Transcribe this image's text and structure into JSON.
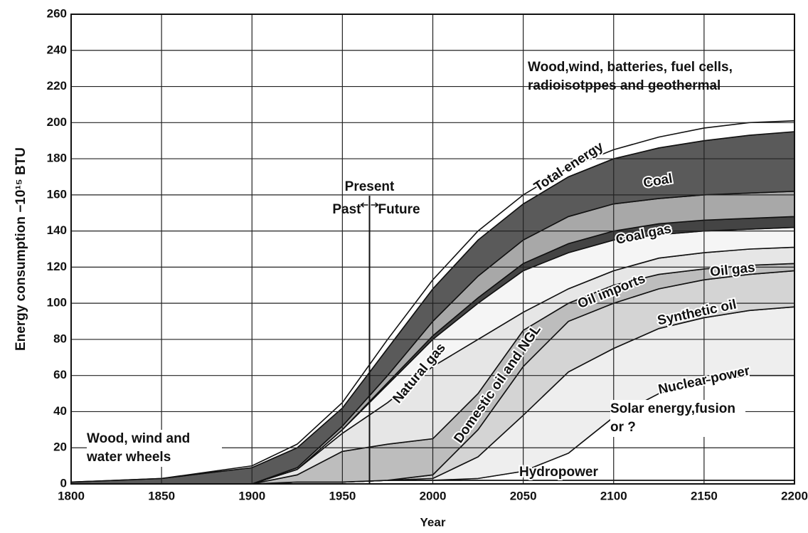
{
  "chart_data": {
    "type": "stacked_area",
    "x_label": "Year",
    "y_label": "Energy consumption −10¹⁵ BTU",
    "x": [
      1800,
      1850,
      1900,
      1925,
      1950,
      1975,
      2000,
      2025,
      2050,
      2075,
      2100,
      2125,
      2150,
      2175,
      2200
    ],
    "series": [
      {
        "name": "Hydropower",
        "color": "#ffffff",
        "values": [
          0,
          0,
          0,
          1,
          1,
          2,
          2,
          2,
          2,
          2,
          2,
          2,
          2,
          2,
          2
        ]
      },
      {
        "name": "Solar energy,fusion or ?",
        "color": "#ffffff",
        "values": [
          0,
          0,
          0,
          0,
          0,
          0,
          0,
          1,
          5,
          15,
          35,
          48,
          55,
          58,
          58
        ]
      },
      {
        "name": "Nuclear power",
        "color": "#eeeeee",
        "values": [
          0,
          0,
          0,
          0,
          0,
          0,
          1,
          12,
          31,
          45,
          38,
          36,
          35,
          36,
          38
        ]
      },
      {
        "name": "Synthetic oil",
        "color": "#d4d4d4",
        "values": [
          0,
          0,
          0,
          0,
          0,
          0,
          2,
          15,
          27,
          28,
          25,
          22,
          21,
          20,
          20
        ]
      },
      {
        "name": "Domestic oil and NGL",
        "color": "#bdbdbd",
        "values": [
          0,
          0,
          0,
          4,
          17,
          20,
          20,
          20,
          20,
          10,
          10,
          8,
          6,
          5,
          4
        ]
      },
      {
        "name": "Natural gas",
        "color": "#e6e6e6",
        "values": [
          0,
          0,
          0,
          3,
          10,
          23,
          40,
          30,
          10,
          8,
          8,
          9,
          9,
          9,
          9
        ]
      },
      {
        "name": "Oil imports",
        "color": "#f5f5f5",
        "values": [
          0,
          0,
          0,
          0,
          2,
          10,
          15,
          20,
          23,
          20,
          17,
          13,
          12,
          11,
          11
        ]
      },
      {
        "name": "Oil gas",
        "color": "#444444",
        "values": [
          0,
          0,
          0,
          0,
          0,
          1,
          2,
          3,
          4,
          5,
          5,
          6,
          6,
          6,
          6
        ]
      },
      {
        "name": "Coal gas",
        "color": "#a8a8a8",
        "values": [
          0,
          0,
          0,
          1,
          2,
          4,
          8,
          12,
          13,
          15,
          15,
          14,
          14,
          14,
          14
        ]
      },
      {
        "name": "Coal",
        "color": "#5a5a5a",
        "values": [
          1,
          3,
          9,
          11,
          10,
          15,
          18,
          20,
          20,
          22,
          25,
          28,
          30,
          32,
          33
        ]
      },
      {
        "name": "Wood,wind, batteries, fuel cells, radioisotppes and geothermal",
        "color": "#ffffff",
        "values": [
          0,
          0,
          1,
          2,
          3,
          5,
          5,
          5,
          5,
          5,
          5,
          6,
          7,
          7,
          6
        ]
      }
    ],
    "annotations": [
      "Total energy",
      "Wood, wind and water wheels",
      "Present",
      "Past",
      "Future"
    ],
    "present_year": 1965,
    "xlim": [
      1800,
      2200
    ],
    "xticks": [
      1800,
      1850,
      1900,
      1950,
      2000,
      2050,
      2100,
      2150,
      2200
    ],
    "ylim": [
      0,
      260
    ],
    "yticks": [
      0,
      20,
      40,
      60,
      80,
      100,
      120,
      140,
      160,
      180,
      200,
      220,
      240,
      260
    ],
    "grid": true
  }
}
